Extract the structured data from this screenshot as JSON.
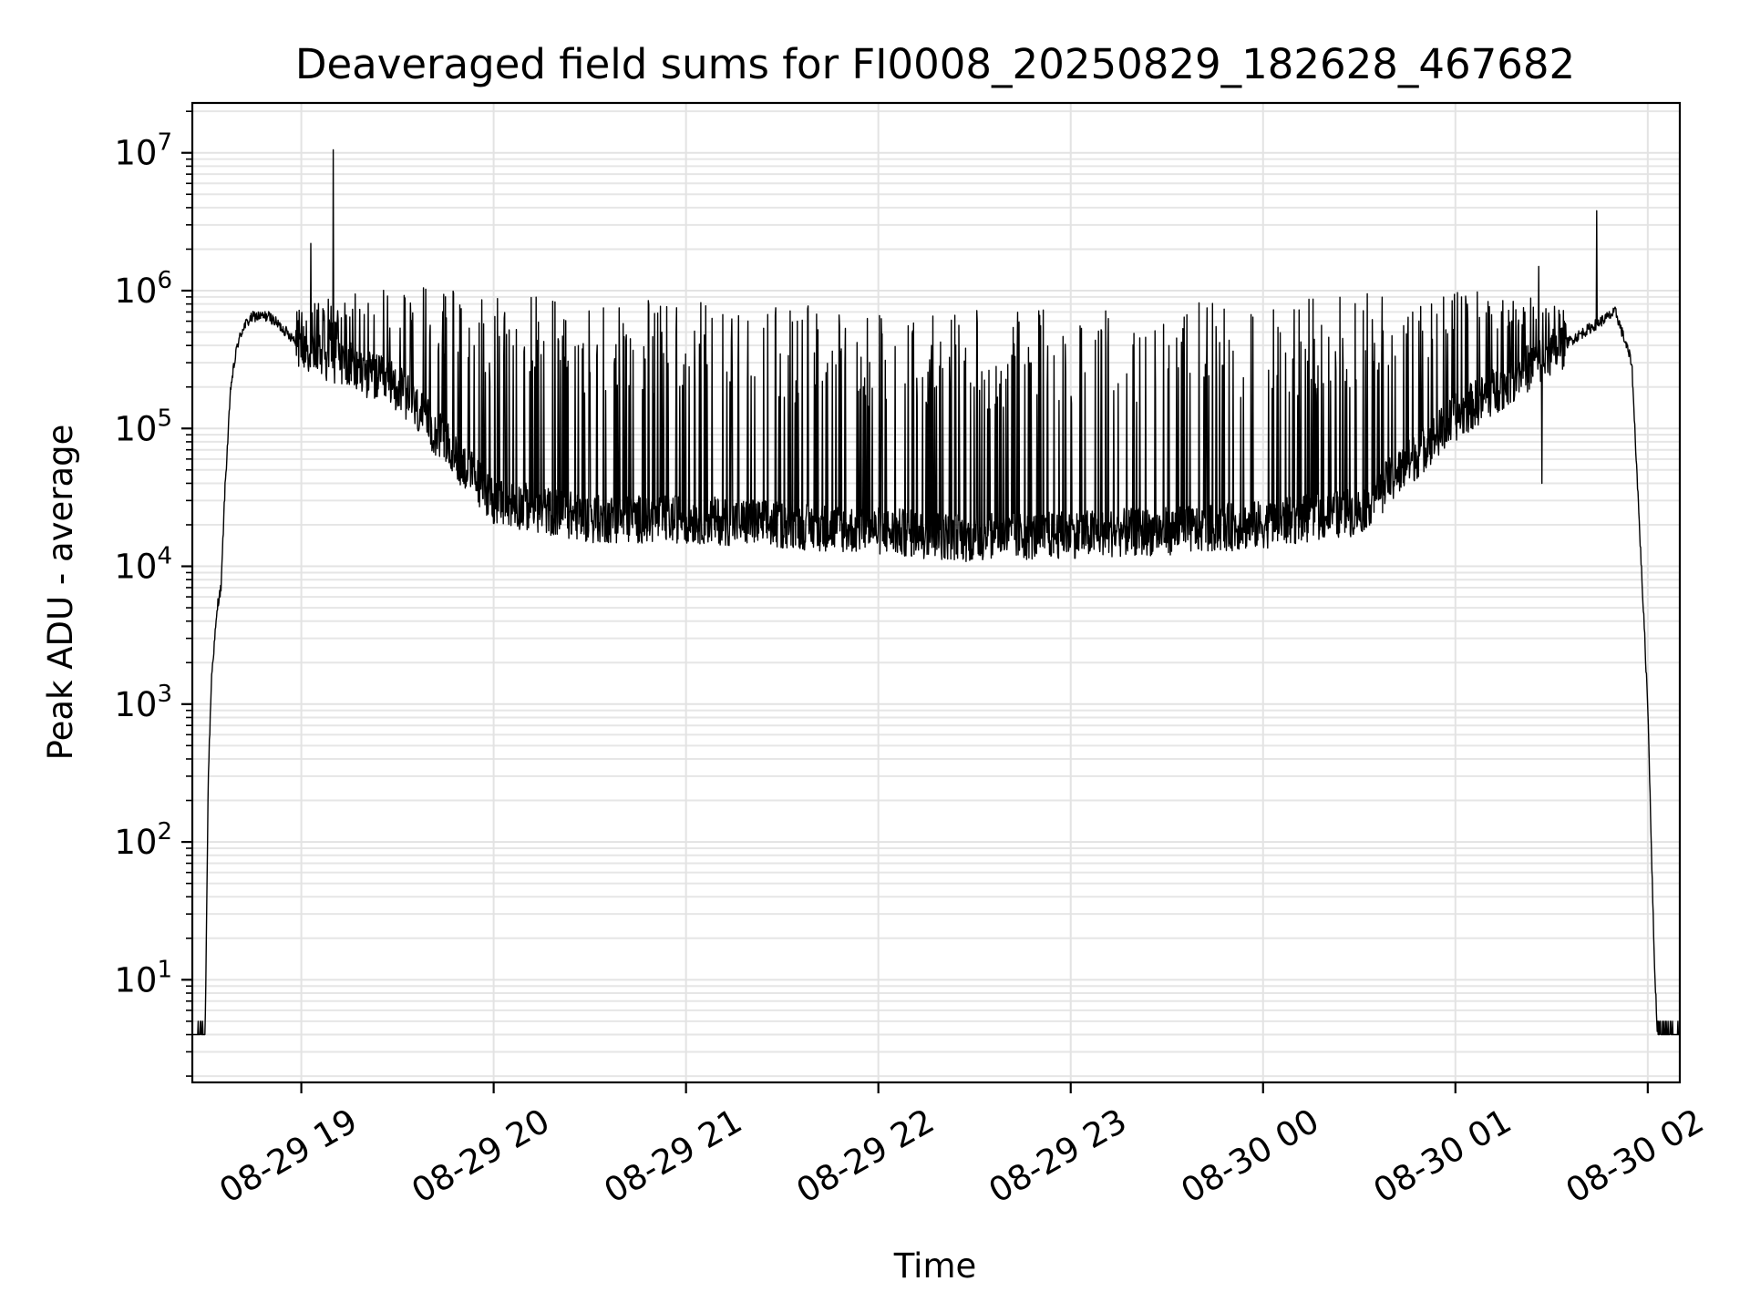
{
  "chart_data": {
    "type": "line",
    "title": "Deaveraged field sums for FI0008_20250829_182628_467682",
    "xlabel": "Time",
    "ylabel": "Peak ADU - average",
    "yscale": "log",
    "ylim": [
      1.8,
      23000000
    ],
    "xlim": [
      "2025-08-29 18:26",
      "2025-08-30 02:10"
    ],
    "grid": true,
    "x_ticks": [
      "2025-08-29 19:00",
      "2025-08-29 20:00",
      "2025-08-29 21:00",
      "2025-08-29 22:00",
      "2025-08-29 23:00",
      "2025-08-30 00:00",
      "2025-08-30 01:00",
      "2025-08-30 02:00"
    ],
    "x_tick_labels": [
      "08-29 19",
      "08-29 20",
      "08-29 21",
      "08-29 22",
      "08-29 23",
      "08-30 00",
      "08-30 01",
      "08-30 02"
    ],
    "y_ticks": [
      10,
      100,
      1000,
      10000,
      100000,
      1000000,
      10000000
    ],
    "y_tick_labels": [
      {
        "base": "10",
        "exp": "1"
      },
      {
        "base": "10",
        "exp": "2"
      },
      {
        "base": "10",
        "exp": "3"
      },
      {
        "base": "10",
        "exp": "4"
      },
      {
        "base": "10",
        "exp": "5"
      },
      {
        "base": "10",
        "exp": "6"
      },
      {
        "base": "10",
        "exp": "7"
      }
    ],
    "series": [
      {
        "color": "#000000",
        "envelope": {
          "x": [
            "2025-08-29 18:26",
            "2025-08-29 18:30",
            "2025-08-29 18:31",
            "2025-08-29 18:32",
            "2025-08-29 18:34",
            "2025-08-29 18:35",
            "2025-08-29 18:36",
            "2025-08-29 18:38",
            "2025-08-29 18:40",
            "2025-08-29 18:42",
            "2025-08-29 18:45",
            "2025-08-29 18:50",
            "2025-08-29 19:00",
            "2025-08-29 19:30",
            "2025-08-29 20:00",
            "2025-08-29 20:30",
            "2025-08-29 21:00",
            "2025-08-29 21:30",
            "2025-08-29 22:00",
            "2025-08-29 22:30",
            "2025-08-29 23:00",
            "2025-08-29 23:30",
            "2025-08-30 00:00",
            "2025-08-30 00:30",
            "2025-08-30 01:00",
            "2025-08-30 01:20",
            "2025-08-30 01:40",
            "2025-08-30 01:50",
            "2025-08-30 01:55",
            "2025-08-30 01:58",
            "2025-08-30 02:00",
            "2025-08-30 02:02",
            "2025-08-30 02:03",
            "2025-08-30 02:10"
          ],
          "baseline": [
            4,
            4,
            300,
            1600,
            5500,
            7000,
            30000,
            200000,
            400000,
            550000,
            650000,
            650000,
            400000,
            200000,
            30000,
            22000,
            22000,
            20000,
            18000,
            16000,
            17000,
            18000,
            20000,
            25000,
            120000,
            250000,
            500000,
            700000,
            300000,
            10000,
            1000,
            15,
            4,
            4
          ],
          "spike_top": [
            4,
            4,
            300,
            1600,
            5500,
            7000,
            30000,
            200000,
            400000,
            550000,
            650000,
            650000,
            800000,
            1100000,
            950000,
            900000,
            850000,
            800000,
            750000,
            750000,
            750000,
            800000,
            850000,
            950000,
            1100000,
            1000000,
            650000,
            800000,
            500000,
            10000,
            1000,
            15,
            4,
            4
          ]
        },
        "outlier_peaks": [
          {
            "x": "2025-08-29 19:10",
            "y": 10500000
          },
          {
            "x": "2025-08-29 19:03",
            "y": 2200000
          },
          {
            "x": "2025-08-30 01:26",
            "y": 1500000
          },
          {
            "x": "2025-08-30 01:27",
            "y": 40000
          },
          {
            "x": "2025-08-30 01:44",
            "y": 3800000
          }
        ]
      }
    ]
  }
}
